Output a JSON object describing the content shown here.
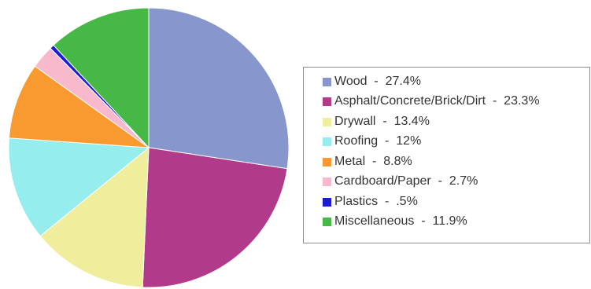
{
  "chart_data": {
    "type": "pie",
    "slices": [
      {
        "label": "Wood",
        "value": 27.4,
        "value_text": "27.4%",
        "color": "#8797cd"
      },
      {
        "label": "Asphalt/Concrete/Brick/Dirt",
        "value": 23.3,
        "value_text": "23.3%",
        "color": "#b23a8a"
      },
      {
        "label": "Drywall",
        "value": 13.4,
        "value_text": "13.4%",
        "color": "#eeee9c"
      },
      {
        "label": "Roofing",
        "value": 12,
        "value_text": "12%",
        "color": "#95eded"
      },
      {
        "label": "Metal",
        "value": 8.8,
        "value_text": "8.8%",
        "color": "#f89a30"
      },
      {
        "label": "Cardboard/Paper",
        "value": 2.7,
        "value_text": "2.7%",
        "color": "#f9b9cc"
      },
      {
        "label": "Plastics",
        "value": 0.5,
        "value_text": ".5%",
        "color": "#1c1cd8"
      },
      {
        "label": "Miscellaneous",
        "value": 11.9,
        "value_text": "11.9%",
        "color": "#46b846"
      }
    ],
    "start_angle": "12 o'clock",
    "direction": "clockwise",
    "legend_position": "right"
  }
}
